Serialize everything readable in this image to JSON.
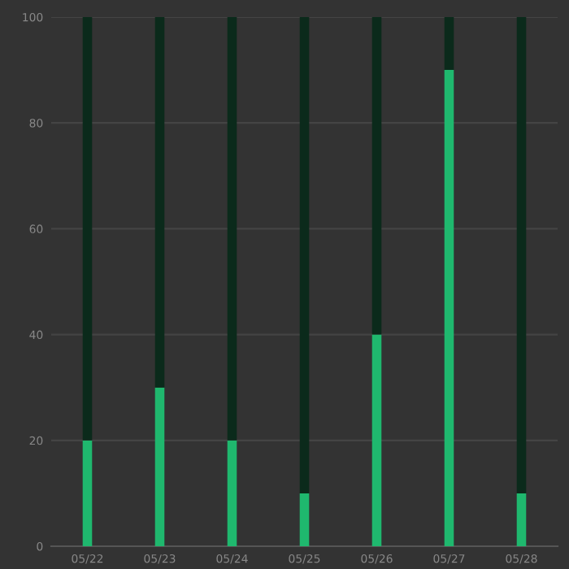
{
  "chart_data": {
    "type": "bar",
    "stacked": true,
    "categories": [
      "05/22",
      "05/23",
      "05/24",
      "05/25",
      "05/26",
      "05/27",
      "05/28"
    ],
    "series": [
      {
        "color": "#1fb86e",
        "values": [
          20,
          30,
          20,
          10,
          40,
          90,
          10
        ]
      },
      {
        "color": "#0b2a1b",
        "values": [
          80,
          70,
          80,
          90,
          60,
          10,
          90
        ]
      }
    ],
    "ylim": [
      0,
      100
    ],
    "yticks": [
      0,
      20,
      40,
      60,
      80,
      100
    ],
    "grid": "y"
  }
}
